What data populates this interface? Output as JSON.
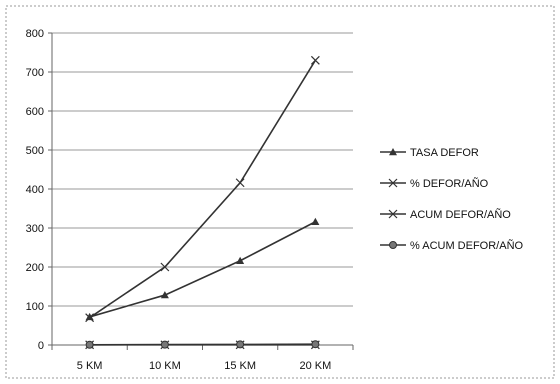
{
  "chart_data": {
    "type": "line",
    "categories": [
      "5 KM",
      "10 KM",
      "15 KM",
      "20 KM"
    ],
    "series": [
      {
        "name": "TASA DEFOR",
        "values": [
          72,
          128,
          216,
          316
        ],
        "marker": "triangle"
      },
      {
        "name": "% DEFOR/AÑO",
        "values": [
          0.5,
          0.5,
          0.5,
          0.5
        ],
        "marker": "x"
      },
      {
        "name": "ACUM DEFOR/AÑO",
        "values": [
          70,
          200,
          416,
          730
        ],
        "marker": "x"
      },
      {
        "name": "% ACUM DEFOR/AÑO",
        "values": [
          0.5,
          1,
          1.5,
          2
        ],
        "marker": "circle"
      }
    ],
    "yticks": [
      0,
      100,
      200,
      300,
      400,
      500,
      600,
      700,
      800
    ],
    "ylim": [
      0,
      800
    ],
    "grid": true,
    "legend": "right",
    "colors": {
      "line": "#333333",
      "grid": "#9a9a9a",
      "frame": "#666666"
    }
  }
}
